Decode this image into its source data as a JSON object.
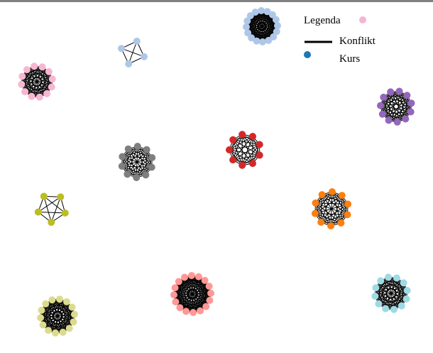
{
  "legend": {
    "title": "Legenda",
    "edge_label": "Konflikt",
    "node_label": "Kurs",
    "title_marker_color": "#f4b6d2",
    "edge_color": "#000000",
    "node_color": "#1f77b4"
  },
  "clusters": [
    {
      "id": "light-blue-top",
      "color": "#aec7e8",
      "node_count": 16
    },
    {
      "id": "light-blue-small",
      "color": "#aec7e8",
      "node_count": 4
    },
    {
      "id": "pink",
      "color": "#f7b6d2",
      "node_count": 12
    },
    {
      "id": "purple",
      "color": "#9467bd",
      "node_count": 11
    },
    {
      "id": "gray",
      "color": "#7f7f7f",
      "node_count": 10
    },
    {
      "id": "red",
      "color": "#d62728",
      "node_count": 9
    },
    {
      "id": "olive",
      "color": "#bcbd22",
      "node_count": 5
    },
    {
      "id": "orange",
      "color": "#ff7f0e",
      "node_count": 10
    },
    {
      "id": "salmon",
      "color": "#ff9896",
      "node_count": 16
    },
    {
      "id": "khaki",
      "color": "#dbdb8d",
      "node_count": 14
    },
    {
      "id": "sky-blue",
      "color": "#9edae5",
      "node_count": 12
    }
  ]
}
